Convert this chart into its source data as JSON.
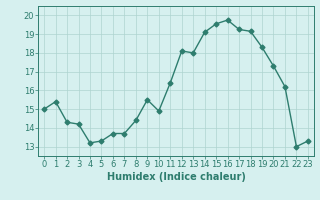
{
  "x": [
    0,
    1,
    2,
    3,
    4,
    5,
    6,
    7,
    8,
    9,
    10,
    11,
    12,
    13,
    14,
    15,
    16,
    17,
    18,
    19,
    20,
    21,
    22,
    23
  ],
  "y": [
    15.0,
    15.4,
    14.3,
    14.2,
    13.2,
    13.3,
    13.7,
    13.7,
    14.4,
    15.5,
    14.9,
    16.4,
    18.1,
    18.0,
    19.1,
    19.55,
    19.75,
    19.25,
    19.15,
    18.3,
    17.3,
    16.2,
    13.0,
    13.3
  ],
  "line_color": "#2e7d6e",
  "marker": "D",
  "markersize": 2.5,
  "linewidth": 1.0,
  "bg_color": "#d6f0ef",
  "grid_color": "#aed4d0",
  "tick_color": "#2e7d6e",
  "xlabel": "Humidex (Indice chaleur)",
  "xlabel_color": "#2e7d6e",
  "xlabel_fontsize": 7,
  "yticks": [
    13,
    14,
    15,
    16,
    17,
    18,
    19,
    20
  ],
  "xticks": [
    0,
    1,
    2,
    3,
    4,
    5,
    6,
    7,
    8,
    9,
    10,
    11,
    12,
    13,
    14,
    15,
    16,
    17,
    18,
    19,
    20,
    21,
    22,
    23
  ],
  "ylim": [
    12.5,
    20.5
  ],
  "xlim": [
    -0.5,
    23.5
  ],
  "tick_fontsize": 6
}
